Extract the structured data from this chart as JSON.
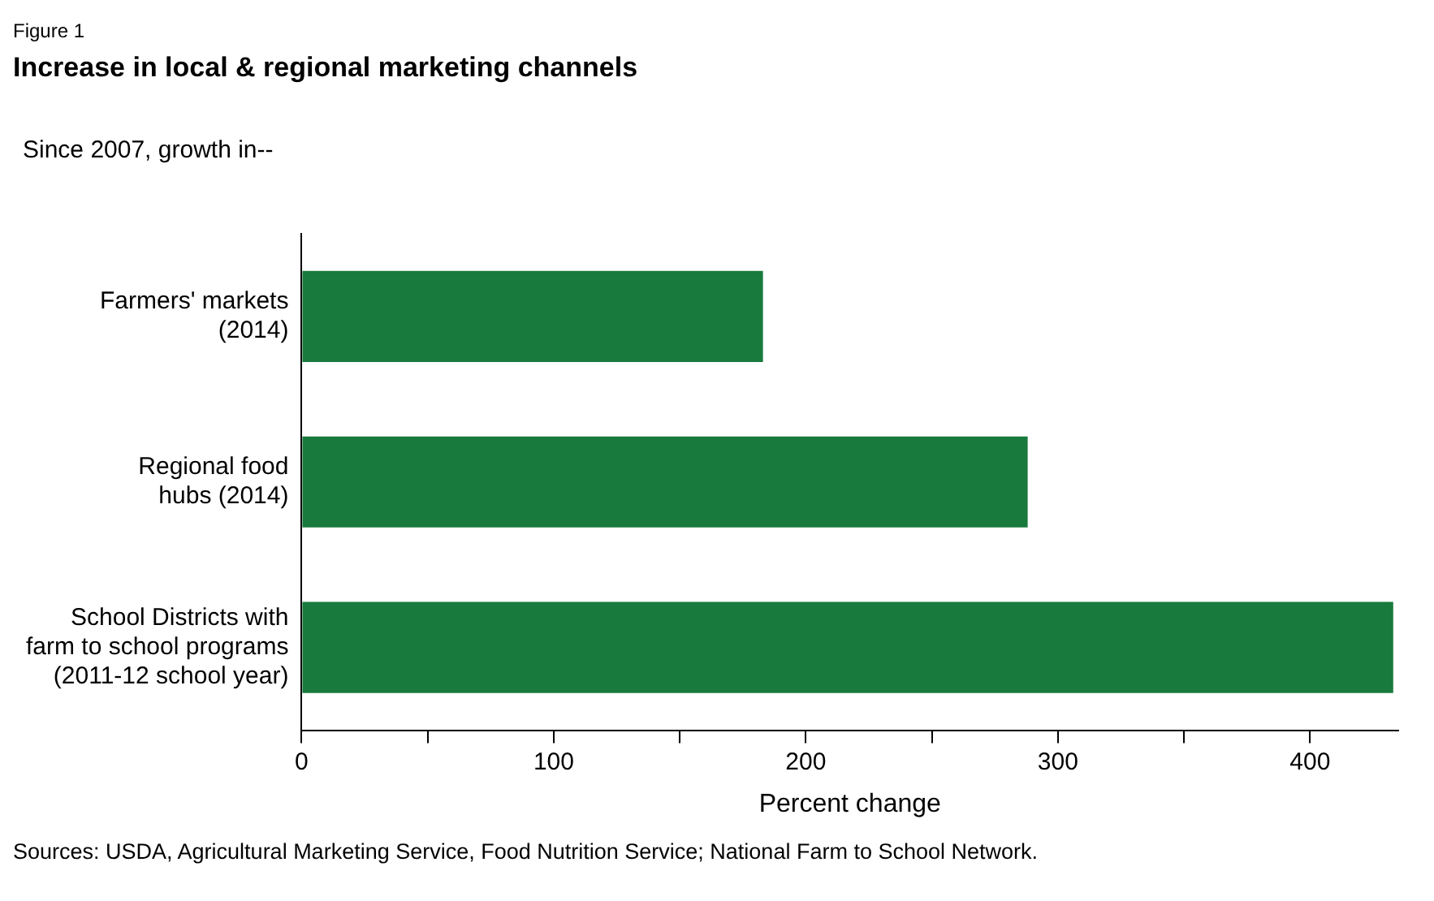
{
  "chart_data": {
    "type": "bar",
    "orientation": "horizontal",
    "subtitle": "Figure 1",
    "title": "Increase in local & regional marketing channels",
    "ylabel": "Since 2007, growth in--",
    "xlabel": "Percent change",
    "categories": [
      "Farmers' markets\n(2014)",
      "Regional food\nhubs (2014)",
      "School Districts with\nfarm to school programs\n(2011-12 school year)"
    ],
    "values": [
      183,
      288,
      433
    ],
    "color": "#187a3c",
    "xlim": [
      0,
      435
    ],
    "xticks": [
      0,
      {
        "value": 50,
        "label": null
      },
      100,
      {
        "value": 150,
        "label": null
      },
      200,
      {
        "value": 250,
        "label": null
      },
      300,
      {
        "value": 350,
        "label": null
      },
      400
    ],
    "grid": false,
    "legend": false,
    "annotations": [
      "Sources: USDA, Agricultural Marketing Service, Food Nutrition Service; National Farm to School Network."
    ]
  }
}
